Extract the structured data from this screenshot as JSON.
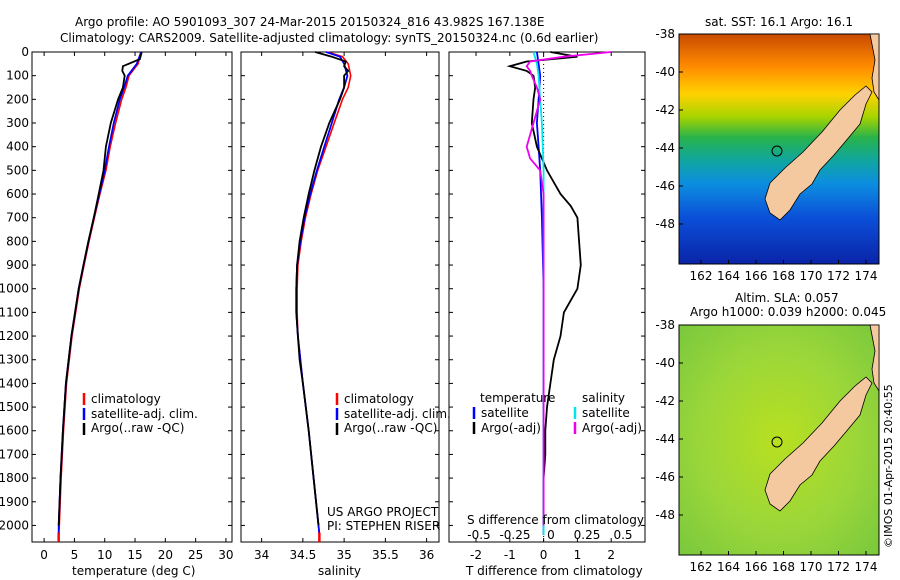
{
  "title_line1": "Argo profile: AO 5901093_307 24-Mar-2015 20150324_816 43.982S 167.138E",
  "title_line2": "Climatology: CARS2009. Satellite-adjusted climatology: synTS_20150324.nc (0.6d earlier)",
  "credit": "©IMOS 01-Apr-2015 20:40:55",
  "project_line1": "US ARGO PROJECT",
  "project_line2": "PI: STEPHEN RISER",
  "sst_title": "sat. SST: 16.1 Argo: 16.1",
  "sla_title1": "Altim. SLA: 0.057",
  "sla_title2": "Argo h1000: 0.039 h2000: 0.045",
  "colors": {
    "climatology": "#ff0000",
    "satellite": "#0000ff",
    "argo": "#000000",
    "sat_salinity": "#00e5ee",
    "argo_salinity": "#ee00ee",
    "land": "#f5c9a0"
  },
  "chart_data": [
    {
      "type": "line",
      "xlabel": "temperature (deg C)",
      "xlim": [
        -2,
        31
      ],
      "xticks": [
        0,
        5,
        10,
        15,
        20,
        25,
        30
      ],
      "ylim": [
        0,
        2070
      ],
      "yticks": [
        0,
        100,
        200,
        300,
        400,
        500,
        600,
        700,
        800,
        900,
        1000,
        1100,
        1200,
        1300,
        1400,
        1500,
        1600,
        1700,
        1800,
        1900,
        2000
      ],
      "legend": [
        "climatology",
        "satellite-adj. clim.",
        "Argo(..raw -QC)"
      ],
      "series": [
        {
          "name": "climatology",
          "depth": [
            0,
            50,
            100,
            150,
            200,
            300,
            400,
            500,
            600,
            700,
            800,
            900,
            1000,
            1200,
            1400,
            1600,
            1800,
            2000,
            2040
          ],
          "values": [
            16.0,
            15.5,
            14.0,
            13.5,
            12.8,
            11.8,
            10.9,
            10.2,
            9.2,
            8.3,
            7.4,
            6.6,
            5.8,
            4.6,
            3.7,
            3.2,
            2.8,
            2.5,
            2.4
          ]
        },
        {
          "name": "satellite-adj. clim.",
          "depth": [
            0,
            50,
            100,
            150,
            200,
            300,
            400,
            500,
            600,
            700,
            800,
            900,
            1000,
            1200,
            1400,
            1600,
            1800,
            2000,
            2040
          ],
          "values": [
            16.0,
            15.3,
            13.8,
            13.2,
            12.5,
            11.5,
            10.7,
            10.0,
            9.1,
            8.2,
            7.3,
            6.5,
            5.7,
            4.5,
            3.6,
            3.1,
            2.7,
            2.4,
            2.4
          ]
        },
        {
          "name": "Argo(..raw -QC)",
          "depth": [
            0,
            30,
            60,
            80,
            100,
            150,
            200,
            300,
            400,
            500,
            600,
            700,
            800,
            900,
            1000,
            1200,
            1400,
            1600,
            1800,
            2000
          ],
          "values": [
            16.1,
            15.8,
            13.0,
            12.9,
            13.3,
            13.0,
            12.2,
            11.0,
            10.2,
            9.8,
            9.0,
            8.2,
            7.3,
            6.5,
            5.7,
            4.5,
            3.6,
            3.1,
            2.7,
            2.4
          ]
        }
      ]
    },
    {
      "type": "line",
      "xlabel": "salinity",
      "xlim": [
        33.75,
        36.15
      ],
      "xticks": [
        34,
        34.5,
        35,
        35.5,
        36
      ],
      "ylim": [
        0,
        2070
      ],
      "legend": [
        "climatology",
        "satellite-adj. clim.",
        "Argo(..raw -QC)"
      ],
      "series": [
        {
          "name": "climatology",
          "depth": [
            0,
            20,
            50,
            100,
            150,
            200,
            300,
            400,
            500,
            600,
            700,
            800,
            900,
            1000,
            1100,
            1200,
            1300,
            1400,
            1600,
            1800,
            2000,
            2040
          ],
          "values": [
            34.8,
            34.98,
            35.05,
            35.08,
            35.05,
            34.98,
            34.88,
            34.78,
            34.68,
            34.6,
            34.53,
            34.48,
            34.44,
            34.43,
            34.43,
            34.44,
            34.47,
            34.5,
            34.57,
            34.63,
            34.69,
            34.7
          ]
        },
        {
          "name": "satellite-adj. clim.",
          "depth": [
            0,
            20,
            50,
            100,
            150,
            200,
            300,
            400,
            500,
            600,
            700,
            800,
            900,
            1000,
            1100,
            1200,
            1300,
            1400,
            1600,
            1800,
            2000,
            2040
          ],
          "values": [
            34.78,
            34.95,
            35.0,
            35.04,
            35.0,
            34.94,
            34.85,
            34.76,
            34.67,
            34.59,
            34.52,
            34.47,
            34.43,
            34.42,
            34.42,
            34.44,
            34.47,
            34.5,
            34.57,
            34.63,
            34.69,
            34.7
          ]
        },
        {
          "name": "Argo(..raw -QC)",
          "depth": [
            0,
            20,
            40,
            60,
            80,
            100,
            150,
            200,
            300,
            400,
            500,
            600,
            700,
            800,
            900,
            1000,
            1100,
            1200,
            1300,
            1400,
            1600,
            1800,
            2000
          ],
          "values": [
            34.65,
            34.85,
            35.02,
            35.0,
            35.05,
            35.0,
            35.0,
            34.95,
            34.82,
            34.72,
            34.64,
            34.57,
            34.51,
            34.46,
            34.43,
            34.42,
            34.42,
            34.44,
            34.46,
            34.5,
            34.57,
            34.63,
            34.69
          ]
        }
      ]
    },
    {
      "type": "line",
      "xlabel": "T difference from climatology",
      "xlabel2": "S difference from climatology",
      "xlim": [
        -2.8,
        3.0
      ],
      "xticks": [
        -2,
        -1,
        0,
        1,
        2
      ],
      "xticks_top_labels": [
        "-0.5",
        "-0.25",
        "0",
        "0.25",
        "0.5"
      ],
      "ylim": [
        0,
        2070
      ],
      "legend_titles": [
        "temperature",
        "salinity"
      ],
      "legend": [
        "satellite",
        "Argo(-adj)",
        "satellite",
        "Argo(-adj)"
      ],
      "series": [
        {
          "name": "satellite",
          "depth": [
            0,
            50,
            100,
            200,
            300,
            400,
            500,
            700,
            1000,
            1500,
            2000,
            2040
          ],
          "values": [
            -0.2,
            -0.15,
            -0.1,
            -0.15,
            -0.2,
            -0.15,
            -0.1,
            -0.05,
            0.0,
            0.0,
            0.0,
            0.0
          ]
        },
        {
          "name": "Argo(-adj)",
          "depth": [
            0,
            20,
            40,
            60,
            80,
            100,
            150,
            200,
            300,
            400,
            500,
            600,
            650,
            700,
            800,
            900,
            1000,
            1100,
            1200,
            1300,
            1400,
            1500,
            1600,
            1700,
            1800,
            1900,
            2000
          ],
          "values": [
            0.2,
            1.0,
            -0.5,
            -1.0,
            -0.5,
            -0.3,
            -0.25,
            -0.3,
            -0.35,
            -0.2,
            0.1,
            0.5,
            0.8,
            1.0,
            1.05,
            1.1,
            1.0,
            0.6,
            0.5,
            0.3,
            0.2,
            0.1,
            0.05,
            0.05,
            0.0,
            0.0,
            0.0
          ]
        },
        {
          "name": "satellite",
          "depth": [
            0,
            50,
            100,
            200,
            300,
            500,
            1000,
            1500,
            2000,
            2040
          ],
          "values": [
            -0.3,
            -0.2,
            -0.15,
            -0.1,
            -0.05,
            0.0,
            0.0,
            0.0,
            0.0,
            0.0
          ]
        },
        {
          "name": "Argo(-adj)",
          "depth": [
            0,
            20,
            40,
            60,
            80,
            100,
            150,
            200,
            300,
            400,
            450,
            500,
            600,
            800,
            1000,
            1500,
            2000
          ],
          "values": [
            2.0,
            0.6,
            -0.4,
            -0.5,
            -0.4,
            -0.35,
            -0.2,
            -0.1,
            -0.3,
            -0.5,
            -0.4,
            -0.1,
            0.0,
            0.0,
            0.0,
            0.0,
            0.0
          ]
        }
      ]
    }
  ],
  "maps": [
    {
      "name": "sst",
      "xticks": [
        "162",
        "164",
        "166",
        "168",
        "170",
        "172",
        "174"
      ],
      "yticks": [
        "-38",
        "-40",
        "-42",
        "-44",
        "-46",
        "-48"
      ]
    },
    {
      "name": "sla",
      "xticks": [
        "162",
        "164",
        "166",
        "168",
        "170",
        "172",
        "174"
      ],
      "yticks": [
        "-38",
        "-40",
        "-42",
        "-44",
        "-46",
        "-48"
      ]
    }
  ]
}
